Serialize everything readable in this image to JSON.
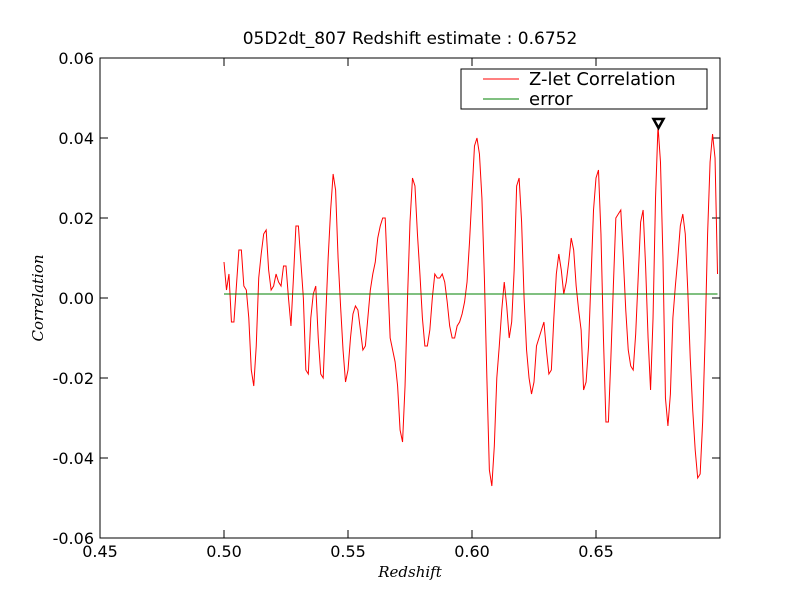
{
  "chart_data": {
    "type": "line",
    "title": "05D2dt_807 Redshift estimate : 0.6752",
    "x_label": "Redshift",
    "y_label": "Correlation",
    "xlim": [
      0.45,
      0.7
    ],
    "xticks": [
      0.45,
      {
        "value": 0.5,
        "label": "0.50"
      },
      0.55,
      {
        "value": 0.6,
        "label": "0.60"
      },
      0.65
    ],
    "ylim": [
      -0.06,
      0.06
    ],
    "yticks": [
      -0.06,
      -0.04,
      -0.02,
      {
        "value": 0,
        "label": "0.00"
      },
      0.02,
      0.04,
      0.06
    ],
    "legend": "upper right",
    "x": [
      0.5,
      0.501,
      0.502,
      0.503,
      0.504,
      0.505,
      0.506,
      0.507,
      0.508,
      0.509,
      0.51,
      0.511,
      0.512,
      0.513,
      0.514,
      0.515,
      0.516,
      0.517,
      0.518,
      0.519,
      0.52,
      0.521,
      0.522,
      0.523,
      0.524,
      0.525,
      0.526,
      0.527,
      0.528,
      0.529,
      0.53,
      0.531,
      0.532,
      0.533,
      0.534,
      0.535,
      0.536,
      0.537,
      0.538,
      0.539,
      0.54,
      0.541,
      0.542,
      0.543,
      0.544,
      0.545,
      0.546,
      0.547,
      0.548,
      0.549,
      0.55,
      0.551,
      0.552,
      0.553,
      0.554,
      0.555,
      0.556,
      0.557,
      0.558,
      0.559,
      0.56,
      0.561,
      0.562,
      0.563,
      0.564,
      0.565,
      0.566,
      0.567,
      0.568,
      0.569,
      0.57,
      0.571,
      0.572,
      0.573,
      0.574,
      0.575,
      0.576,
      0.577,
      0.578,
      0.579,
      0.58,
      0.581,
      0.582,
      0.583,
      0.584,
      0.585,
      0.586,
      0.587,
      0.588,
      0.589,
      0.59,
      0.591,
      0.592,
      0.593,
      0.594,
      0.595,
      0.596,
      0.597,
      0.598,
      0.599,
      0.6,
      0.601,
      0.602,
      0.603,
      0.604,
      0.605,
      0.606,
      0.607,
      0.608,
      0.609,
      0.61,
      0.611,
      0.612,
      0.613,
      0.614,
      0.615,
      0.616,
      0.617,
      0.618,
      0.619,
      0.62,
      0.621,
      0.622,
      0.623,
      0.624,
      0.625,
      0.626,
      0.627,
      0.628,
      0.629,
      0.63,
      0.631,
      0.632,
      0.633,
      0.634,
      0.635,
      0.636,
      0.637,
      0.638,
      0.639,
      0.64,
      0.641,
      0.642,
      0.643,
      0.644,
      0.645,
      0.646,
      0.647,
      0.648,
      0.649,
      0.65,
      0.651,
      0.652,
      0.653,
      0.654,
      0.655,
      0.656,
      0.657,
      0.658,
      0.659,
      0.66,
      0.661,
      0.662,
      0.663,
      0.664,
      0.665,
      0.666,
      0.667,
      0.668,
      0.669,
      0.67,
      0.671,
      0.672,
      0.673,
      0.674,
      0.675,
      0.676,
      0.677,
      0.678,
      0.679,
      0.68,
      0.681,
      0.682,
      0.683,
      0.684,
      0.685,
      0.686,
      0.687,
      0.688,
      0.689,
      0.69,
      0.691,
      0.692,
      0.693,
      0.694,
      0.695,
      0.696,
      0.697,
      0.698,
      0.699
    ],
    "series": [
      {
        "name": "Z-let Correlation",
        "color": "#ff0000",
        "values": [
          0.009,
          0.002,
          0.006,
          -0.006,
          -0.006,
          0.003,
          0.012,
          0.012,
          0.003,
          0.002,
          -0.005,
          -0.018,
          -0.022,
          -0.012,
          0.005,
          0.011,
          0.016,
          0.017,
          0.007,
          0.002,
          0.003,
          0.006,
          0.004,
          0.003,
          0.008,
          0.008,
          0.0,
          -0.007,
          0.005,
          0.018,
          0.018,
          0.009,
          0.0,
          -0.018,
          -0.019,
          -0.005,
          0.001,
          0.003,
          -0.01,
          -0.019,
          -0.02,
          -0.005,
          0.01,
          0.022,
          0.031,
          0.027,
          0.01,
          -0.002,
          -0.013,
          -0.021,
          -0.018,
          -0.01,
          -0.004,
          -0.002,
          -0.003,
          -0.008,
          -0.013,
          -0.012,
          -0.005,
          0.002,
          0.006,
          0.009,
          0.015,
          0.018,
          0.02,
          0.02,
          0.005,
          -0.01,
          -0.013,
          -0.016,
          -0.022,
          -0.033,
          -0.036,
          -0.022,
          0.0,
          0.019,
          0.03,
          0.028,
          0.016,
          0.006,
          -0.005,
          -0.012,
          -0.012,
          -0.008,
          0.0,
          0.006,
          0.005,
          0.005,
          0.006,
          0.004,
          -0.001,
          -0.007,
          -0.01,
          -0.01,
          -0.007,
          -0.006,
          -0.004,
          -0.001,
          0.004,
          0.014,
          0.026,
          0.038,
          0.04,
          0.036,
          0.025,
          0.005,
          -0.02,
          -0.043,
          -0.047,
          -0.037,
          -0.02,
          -0.012,
          -0.003,
          0.004,
          -0.002,
          -0.01,
          -0.006,
          0.007,
          0.028,
          0.03,
          0.019,
          0.0,
          -0.013,
          -0.02,
          -0.024,
          -0.021,
          -0.012,
          -0.01,
          -0.008,
          -0.006,
          -0.013,
          -0.019,
          -0.018,
          -0.005,
          0.006,
          0.011,
          0.007,
          0.001,
          0.004,
          0.009,
          0.015,
          0.012,
          0.003,
          -0.003,
          -0.008,
          -0.023,
          -0.021,
          -0.012,
          0.005,
          0.022,
          0.03,
          0.032,
          0.016,
          -0.01,
          -0.031,
          -0.031,
          -0.015,
          0.003,
          0.02,
          0.021,
          0.022,
          0.01,
          -0.003,
          -0.013,
          -0.017,
          -0.018,
          -0.009,
          0.005,
          0.019,
          0.022,
          0.008,
          -0.01,
          -0.023,
          -0.005,
          0.025,
          0.043,
          0.034,
          0.01,
          -0.025,
          -0.032,
          -0.024,
          -0.005,
          0.003,
          0.01,
          0.018,
          0.021,
          0.016,
          0.002,
          -0.015,
          -0.028,
          -0.038,
          -0.045,
          -0.044,
          -0.031,
          -0.01,
          0.016,
          0.034,
          0.041,
          0.035,
          0.006
        ]
      },
      {
        "name": "error",
        "color": "#008000",
        "x": [
          0.5,
          0.699
        ],
        "values": [
          0.001,
          0.001
        ]
      }
    ],
    "marker": {
      "x": 0.6752,
      "y": 0.0435
    }
  }
}
